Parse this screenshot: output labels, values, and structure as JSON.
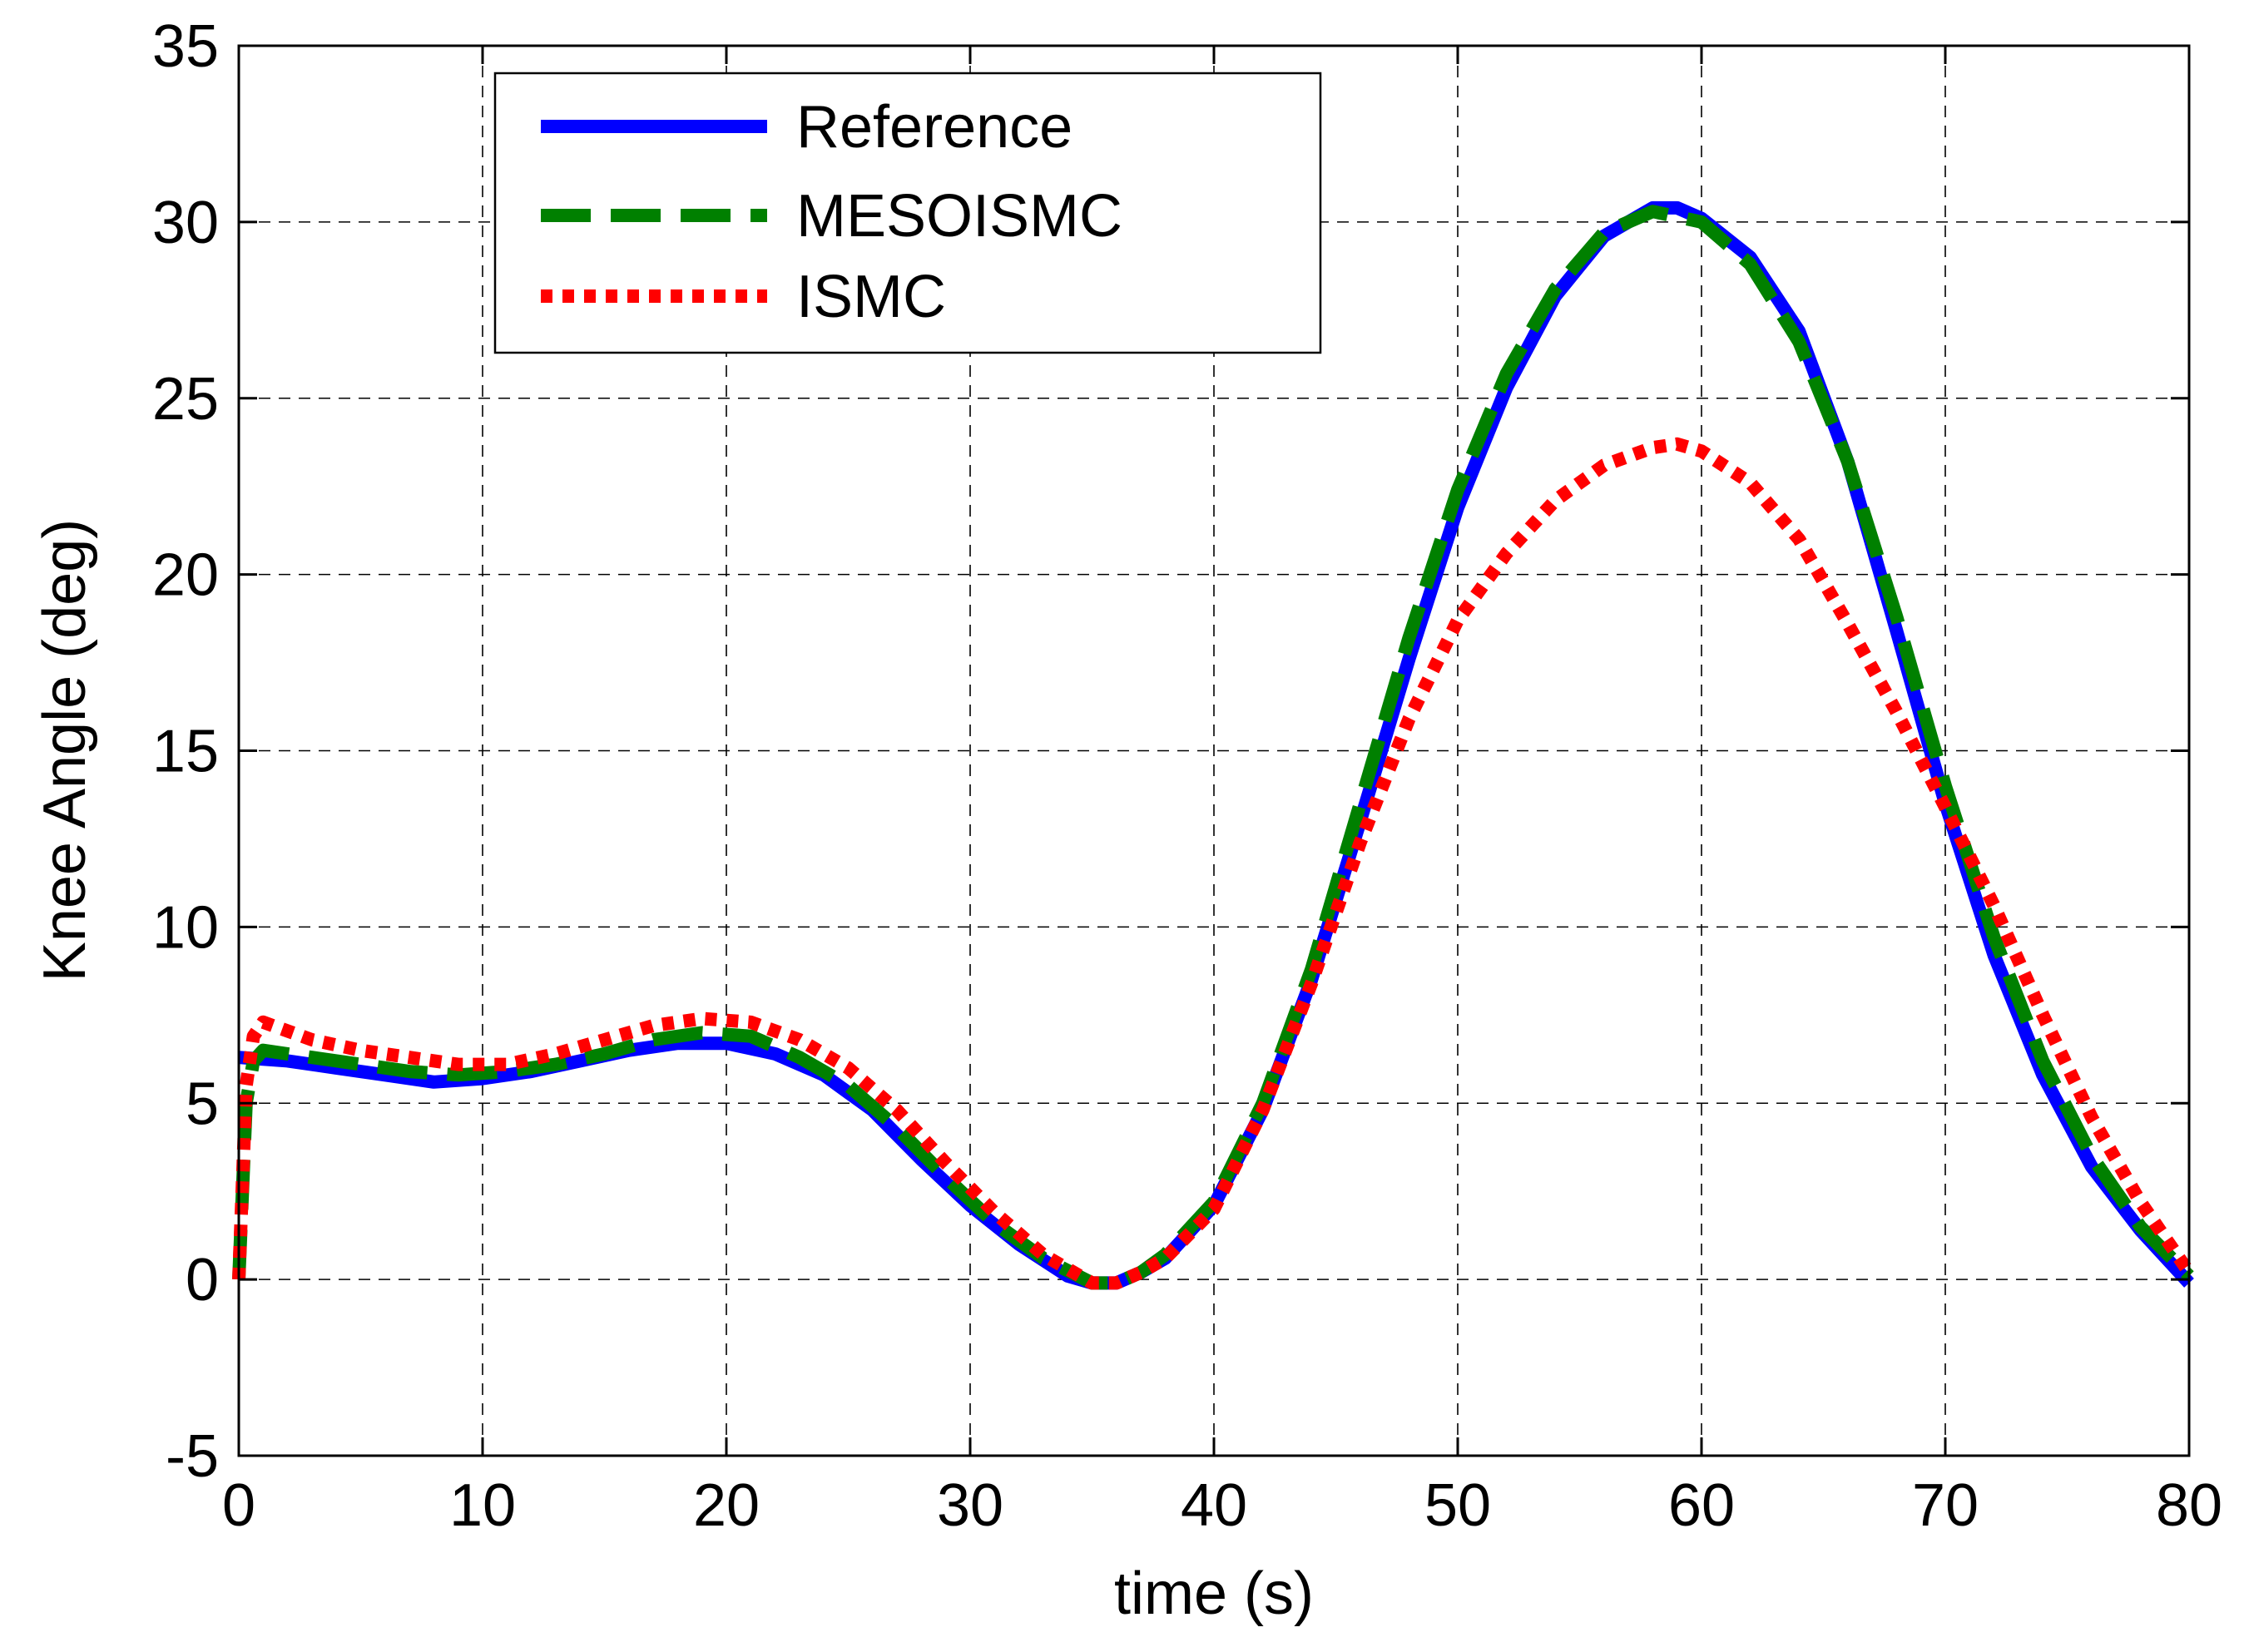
{
  "chart_data": {
    "type": "line",
    "title": "",
    "xlabel": "time (s)",
    "ylabel": "Knee Angle (deg)",
    "xlim": [
      0,
      80
    ],
    "ylim": [
      -5,
      35
    ],
    "xticks": [
      0,
      10,
      20,
      30,
      40,
      50,
      60,
      70,
      80
    ],
    "yticks": [
      -5,
      0,
      5,
      10,
      15,
      20,
      25,
      30,
      35
    ],
    "grid": true,
    "legend_position": "top-left",
    "series": [
      {
        "name": "Reference",
        "color": "#0000ff",
        "style": "solid",
        "points": [
          [
            0,
            6.3
          ],
          [
            2,
            6.2
          ],
          [
            4,
            6.0
          ],
          [
            6,
            5.8
          ],
          [
            8,
            5.6
          ],
          [
            10,
            5.7
          ],
          [
            12,
            5.9
          ],
          [
            14,
            6.2
          ],
          [
            16,
            6.5
          ],
          [
            18,
            6.7
          ],
          [
            20,
            6.7
          ],
          [
            22,
            6.4
          ],
          [
            24,
            5.8
          ],
          [
            26,
            4.8
          ],
          [
            28,
            3.4
          ],
          [
            30,
            2.1
          ],
          [
            32,
            1.0
          ],
          [
            34,
            0.1
          ],
          [
            35,
            -0.1
          ],
          [
            36,
            -0.1
          ],
          [
            37,
            0.2
          ],
          [
            38,
            0.6
          ],
          [
            40,
            2.1
          ],
          [
            42,
            4.8
          ],
          [
            44,
            8.5
          ],
          [
            46,
            13.0
          ],
          [
            48,
            17.6
          ],
          [
            50,
            21.9
          ],
          [
            52,
            25.3
          ],
          [
            54,
            27.9
          ],
          [
            56,
            29.6
          ],
          [
            58,
            30.4
          ],
          [
            59,
            30.4
          ],
          [
            60,
            30.1
          ],
          [
            62,
            29.0
          ],
          [
            64,
            26.9
          ],
          [
            66,
            23.2
          ],
          [
            68,
            18.4
          ],
          [
            70,
            13.5
          ],
          [
            72,
            9.2
          ],
          [
            74,
            5.8
          ],
          [
            76,
            3.2
          ],
          [
            78,
            1.4
          ],
          [
            80,
            -0.1
          ]
        ]
      },
      {
        "name": "MESOISMC",
        "color": "#008000",
        "style": "dashed",
        "points": [
          [
            0,
            0
          ],
          [
            0.3,
            5.0
          ],
          [
            0.6,
            6.2
          ],
          [
            1,
            6.5
          ],
          [
            3,
            6.3
          ],
          [
            5,
            6.1
          ],
          [
            7,
            5.9
          ],
          [
            9,
            5.8
          ],
          [
            11,
            5.9
          ],
          [
            13,
            6.1
          ],
          [
            15,
            6.4
          ],
          [
            17,
            6.8
          ],
          [
            19,
            7.0
          ],
          [
            21,
            6.9
          ],
          [
            23,
            6.3
          ],
          [
            25,
            5.5
          ],
          [
            27,
            4.3
          ],
          [
            29,
            2.9
          ],
          [
            31,
            1.6
          ],
          [
            33,
            0.6
          ],
          [
            35,
            -0.1
          ],
          [
            36,
            -0.1
          ],
          [
            37,
            0.2
          ],
          [
            38,
            0.7
          ],
          [
            40,
            2.2
          ],
          [
            42,
            5.0
          ],
          [
            44,
            8.8
          ],
          [
            46,
            13.5
          ],
          [
            48,
            18.2
          ],
          [
            50,
            22.4
          ],
          [
            52,
            25.7
          ],
          [
            54,
            28.1
          ],
          [
            56,
            29.7
          ],
          [
            58,
            30.3
          ],
          [
            60,
            30.0
          ],
          [
            62,
            28.8
          ],
          [
            64,
            26.6
          ],
          [
            66,
            23.2
          ],
          [
            68,
            18.8
          ],
          [
            70,
            14.0
          ],
          [
            72,
            9.7
          ],
          [
            74,
            6.2
          ],
          [
            76,
            3.5
          ],
          [
            78,
            1.5
          ],
          [
            80,
            0.1
          ]
        ]
      },
      {
        "name": "ISMC",
        "color": "#ff0000",
        "style": "dotted",
        "points": [
          [
            0,
            0
          ],
          [
            0.3,
            5.5
          ],
          [
            0.6,
            6.9
          ],
          [
            1,
            7.3
          ],
          [
            3,
            6.8
          ],
          [
            5,
            6.5
          ],
          [
            7,
            6.3
          ],
          [
            9,
            6.1
          ],
          [
            11,
            6.1
          ],
          [
            13,
            6.4
          ],
          [
            15,
            6.8
          ],
          [
            17,
            7.2
          ],
          [
            19,
            7.4
          ],
          [
            21,
            7.3
          ],
          [
            23,
            6.8
          ],
          [
            25,
            6.0
          ],
          [
            27,
            4.8
          ],
          [
            29,
            3.3
          ],
          [
            31,
            1.9
          ],
          [
            33,
            0.7
          ],
          [
            35,
            -0.1
          ],
          [
            36,
            -0.1
          ],
          [
            37,
            0.2
          ],
          [
            38,
            0.6
          ],
          [
            40,
            2.0
          ],
          [
            42,
            4.8
          ],
          [
            44,
            8.4
          ],
          [
            46,
            12.4
          ],
          [
            48,
            15.9
          ],
          [
            50,
            18.7
          ],
          [
            52,
            20.6
          ],
          [
            54,
            22.1
          ],
          [
            56,
            23.1
          ],
          [
            58,
            23.6
          ],
          [
            59,
            23.7
          ],
          [
            60,
            23.5
          ],
          [
            62,
            22.6
          ],
          [
            64,
            21.0
          ],
          [
            66,
            18.6
          ],
          [
            68,
            16.1
          ],
          [
            70,
            13.4
          ],
          [
            72,
            10.6
          ],
          [
            74,
            7.5
          ],
          [
            76,
            4.6
          ],
          [
            78,
            2.2
          ],
          [
            80,
            0.2
          ]
        ]
      }
    ]
  }
}
